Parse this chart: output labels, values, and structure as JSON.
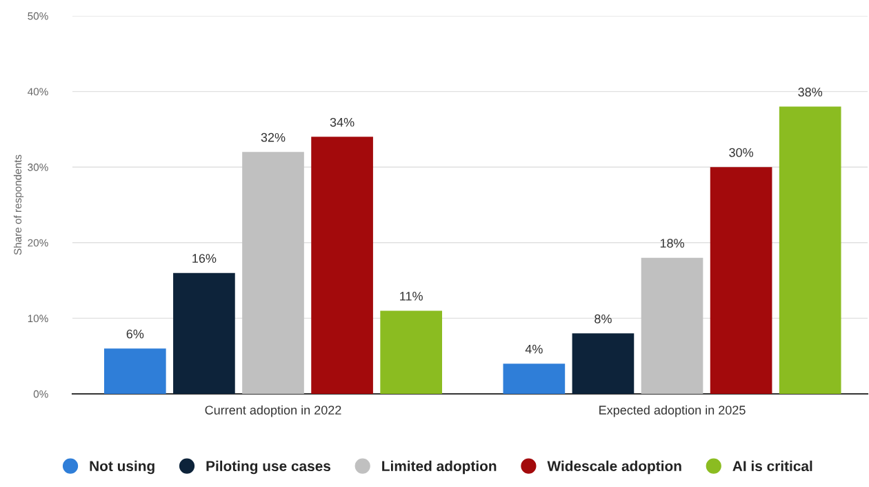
{
  "chart_data": {
    "type": "bar",
    "ylabel": "Share of respondents",
    "categories": [
      "Current adoption in 2022",
      "Expected adoption in 2025"
    ],
    "series": [
      {
        "name": "Not using",
        "color": "#2f7ed8",
        "values": [
          6,
          4
        ],
        "value_labels": [
          "6%",
          "4%"
        ]
      },
      {
        "name": "Piloting use cases",
        "color": "#0d233a",
        "values": [
          16,
          8
        ],
        "value_labels": [
          "16%",
          "8%"
        ]
      },
      {
        "name": "Limited adoption",
        "color": "#c0c0c0",
        "values": [
          32,
          18
        ],
        "value_labels": [
          "32%",
          "18%"
        ]
      },
      {
        "name": "Widescale adoption",
        "color": "#a30a0c",
        "values": [
          34,
          30
        ],
        "value_labels": [
          "34%",
          "30%"
        ]
      },
      {
        "name": "AI is critical",
        "color": "#8bbc21",
        "values": [
          11,
          38
        ],
        "value_labels": [
          "11%",
          "38%"
        ]
      }
    ],
    "ylim": [
      0,
      50
    ],
    "yticks": [
      {
        "value": 0,
        "label": "0%"
      },
      {
        "value": 10,
        "label": "10%"
      },
      {
        "value": 20,
        "label": "20%"
      },
      {
        "value": 30,
        "label": "30%"
      },
      {
        "value": 40,
        "label": "40%"
      },
      {
        "value": 50,
        "label": "50%"
      }
    ],
    "grid": "y",
    "legend": "bottom"
  }
}
